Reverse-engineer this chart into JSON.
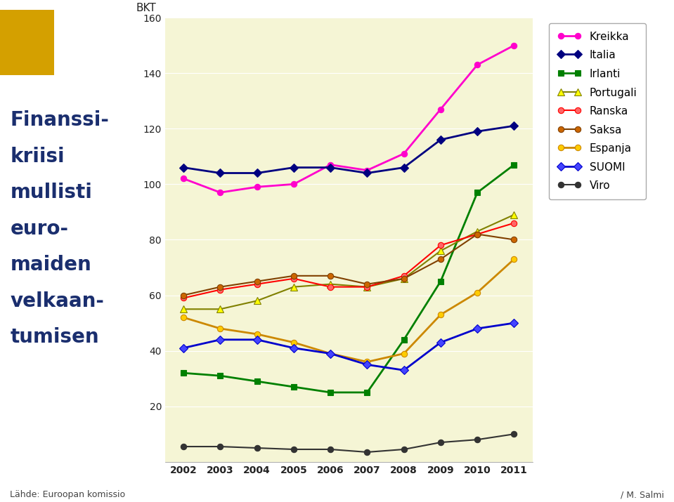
{
  "years": [
    2002,
    2003,
    2004,
    2005,
    2006,
    2007,
    2008,
    2009,
    2010,
    2011
  ],
  "series": {
    "Kreikka": {
      "values": [
        102,
        97,
        99,
        100,
        107,
        105,
        111,
        127,
        143,
        150
      ],
      "color": "#ff00cc",
      "marker": "o",
      "linewidth": 2.0,
      "markersize": 6,
      "markerfacecolor": "#ff00cc"
    },
    "Italia": {
      "values": [
        106,
        104,
        104,
        106,
        106,
        104,
        106,
        116,
        119,
        121
      ],
      "color": "#000080",
      "marker": "D",
      "linewidth": 2.0,
      "markersize": 6,
      "markerfacecolor": "#000080"
    },
    "Irlanti": {
      "values": [
        32,
        31,
        29,
        27,
        25,
        25,
        44,
        65,
        97,
        107
      ],
      "color": "#008000",
      "marker": "s",
      "linewidth": 2.0,
      "markersize": 6,
      "markerfacecolor": "#008000"
    },
    "Portugali": {
      "values": [
        55,
        55,
        58,
        63,
        64,
        63,
        66,
        76,
        83,
        89
      ],
      "color": "#808000",
      "marker": "^",
      "linewidth": 1.5,
      "markersize": 7,
      "markerfacecolor": "#ffff00"
    },
    "Ranska": {
      "values": [
        59,
        62,
        64,
        66,
        63,
        63,
        67,
        78,
        82,
        86
      ],
      "color": "#ff0000",
      "marker": "o",
      "linewidth": 1.5,
      "markersize": 6,
      "markerfacecolor": "#ff6666"
    },
    "Saksa": {
      "values": [
        60,
        63,
        65,
        67,
        67,
        64,
        66,
        73,
        82,
        80
      ],
      "color": "#804000",
      "marker": "o",
      "linewidth": 1.5,
      "markersize": 6,
      "markerfacecolor": "#cc6600"
    },
    "Espanja": {
      "values": [
        52,
        48,
        46,
        43,
        39,
        36,
        39,
        53,
        61,
        73
      ],
      "color": "#cc8800",
      "marker": "o",
      "linewidth": 2.0,
      "markersize": 6,
      "markerfacecolor": "#ffcc00"
    },
    "SUOMI": {
      "values": [
        41,
        44,
        44,
        41,
        39,
        35,
        33,
        43,
        48,
        50
      ],
      "color": "#0000cc",
      "marker": "D",
      "linewidth": 2.0,
      "markersize": 6,
      "markerfacecolor": "#4444ff"
    },
    "Viro": {
      "values": [
        5.5,
        5.5,
        5,
        4.5,
        4.5,
        3.5,
        4.5,
        7,
        8,
        10
      ],
      "color": "#333333",
      "marker": "o",
      "linewidth": 1.5,
      "markersize": 6,
      "markerfacecolor": "#333333"
    }
  },
  "ylabel": "% /\nBKT",
  "ylim": [
    0,
    160
  ],
  "yticks": [
    0,
    20,
    40,
    60,
    80,
    100,
    120,
    140,
    160
  ],
  "plot_background": "#f5f5d5",
  "fig_background": "#ffffff",
  "title_lines": [
    "Finanssi-",
    "kriisi",
    "mullisti",
    "euro-",
    "maiden",
    "velkaan-",
    "tumisen"
  ],
  "title_color": "#1a2e6e",
  "title_fontsize": 20,
  "source_text": "Lähde: Euroopan komissio",
  "credit_text": "/ M. Salmi",
  "legend_order": [
    "Kreikka",
    "Italia",
    "Irlanti",
    "Portugali",
    "Ranska",
    "Saksa",
    "Espanja",
    "SUOMI",
    "Viro"
  ]
}
